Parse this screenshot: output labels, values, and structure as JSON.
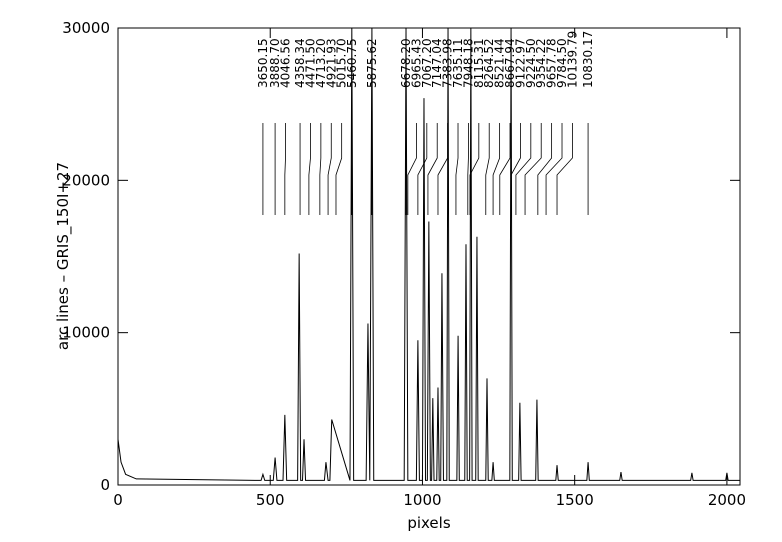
{
  "chart_data": {
    "type": "line",
    "xlabel": "pixels",
    "ylabel": "arc lines  –  GRIS_150I+27",
    "xlim": [
      0,
      2043
    ],
    "ylim": [
      0,
      30000
    ],
    "xticks": [
      0,
      500,
      1000,
      1500,
      2000
    ],
    "yticks": [
      0,
      10000,
      20000,
      30000
    ],
    "color": "#000000",
    "x": [
      0,
      10,
      25,
      60,
      470,
      476,
      482,
      510,
      516,
      522,
      542,
      548,
      554,
      590,
      595,
      600,
      606,
      611,
      616,
      678,
      683,
      690,
      696,
      702,
      762,
      768,
      774,
      815,
      821,
      827,
      834,
      840,
      940,
      946,
      952,
      980,
      985,
      990,
      1000,
      1005,
      1010,
      1016,
      1021,
      1026,
      1030,
      1034,
      1038,
      1047,
      1051,
      1055,
      1060,
      1064,
      1069,
      1080,
      1084,
      1088,
      1113,
      1117,
      1121,
      1139,
      1143,
      1147,
      1155,
      1159,
      1163,
      1175,
      1179,
      1183,
      1208,
      1212,
      1216,
      1228,
      1232,
      1236,
      1287,
      1291,
      1295,
      1316,
      1320,
      1324,
      1372,
      1376,
      1380,
      1438,
      1442,
      1446,
      1540,
      1544,
      1548,
      1648,
      1652,
      1656,
      1881,
      1885,
      1889,
      1996,
      2000,
      2004,
      2043
    ],
    "values": [
      3000,
      1500,
      700,
      400,
      300,
      700,
      300,
      300,
      1800,
      300,
      300,
      4600,
      300,
      300,
      15200,
      300,
      300,
      3000,
      300,
      300,
      1500,
      300,
      300,
      4300,
      300,
      30000,
      300,
      300,
      10600,
      300,
      30000,
      300,
      300,
      30000,
      300,
      300,
      9500,
      300,
      300,
      25400,
      300,
      300,
      17300,
      300,
      300,
      5700,
      300,
      300,
      6400,
      300,
      300,
      13900,
      300,
      300,
      30000,
      300,
      300,
      9800,
      300,
      300,
      15800,
      300,
      300,
      30000,
      300,
      300,
      16300,
      300,
      300,
      7000,
      300,
      300,
      1500,
      300,
      300,
      30000,
      300,
      300,
      5400,
      300,
      300,
      5600,
      300,
      300,
      1300,
      300,
      300,
      1500,
      300,
      300,
      850,
      300,
      300,
      800,
      300,
      300,
      800,
      300,
      300
    ],
    "arc_lines": {
      "labels": [
        "3650.15",
        "3888.70",
        "4046.56",
        "4358.34",
        "4471.50",
        "4713.20",
        "4921.93",
        "5015.70",
        "5460.75",
        "5875.62",
        "6678.20",
        "6965.43",
        "7067.20",
        "7147.04",
        "7383.98",
        "7635.11",
        "7948.18",
        "8115.31",
        "8264.52",
        "8521.44",
        "8667.94",
        "9122.97",
        "9224.50",
        "9354.22",
        "9657.78",
        "9784.50",
        "10139.79",
        "10830.17"
      ],
      "pixels": [
        476,
        516,
        548,
        598,
        627,
        663,
        690,
        716,
        768,
        834,
        946,
        952,
        985,
        1018,
        1051,
        1110,
        1149,
        1156,
        1208,
        1232,
        1254,
        1291,
        1307,
        1337,
        1379,
        1406,
        1442,
        1544
      ]
    }
  }
}
